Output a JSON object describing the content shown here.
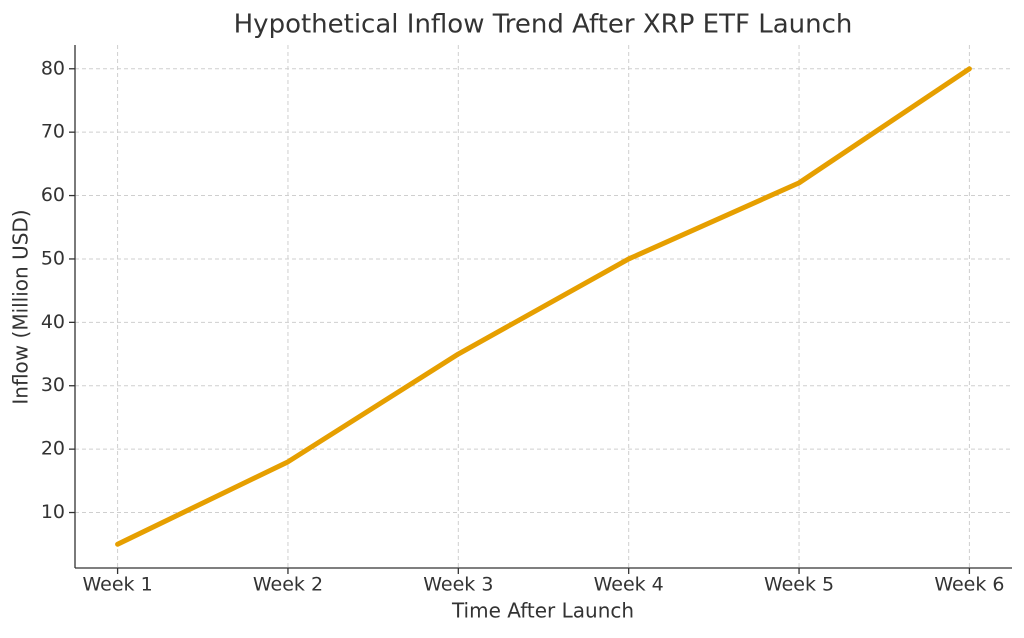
{
  "chart_data": {
    "type": "line",
    "title": "Hypothetical Inflow Trend After XRP ETF Launch",
    "x_label": "Time After Launch",
    "y_label": "Inflow (Million USD)",
    "categories": [
      "Week 1",
      "Week 2",
      "Week 3",
      "Week 4",
      "Week 5",
      "Week 6"
    ],
    "values": [
      5,
      18,
      35,
      50,
      62,
      80
    ],
    "color": "#e69f00",
    "ylim": [
      1.25,
      83.75
    ],
    "yticks": [
      10,
      20,
      30,
      40,
      50,
      60,
      70,
      80
    ],
    "grid": true
  }
}
